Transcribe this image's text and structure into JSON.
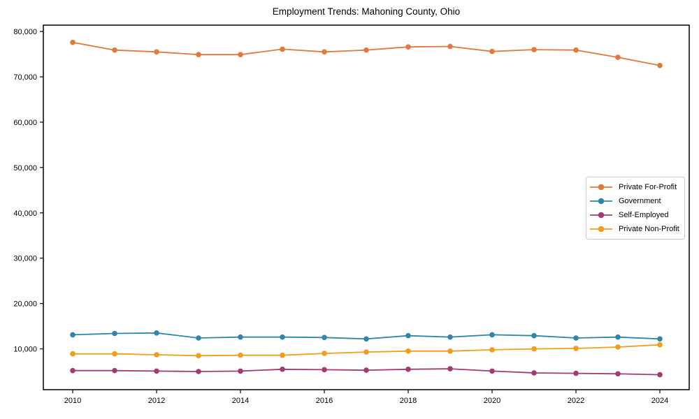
{
  "chart_data": {
    "type": "line",
    "title": "Employment Trends: Mahoning County, Ohio",
    "x": [
      2010,
      2011,
      2012,
      2013,
      2014,
      2015,
      2016,
      2017,
      2018,
      2019,
      2020,
      2021,
      2022,
      2023,
      2024
    ],
    "series": [
      {
        "name": "Private For-Profit",
        "color": "#E2793C",
        "values": [
          77600,
          75900,
          75500,
          74900,
          74900,
          76100,
          75500,
          75900,
          76600,
          76700,
          75600,
          76000,
          75900,
          74300,
          72500
        ]
      },
      {
        "name": "Government",
        "color": "#2E86A8",
        "values": [
          13100,
          13400,
          13500,
          12400,
          12600,
          12600,
          12500,
          12200,
          12900,
          12600,
          13100,
          12900,
          12400,
          12600,
          12200
        ]
      },
      {
        "name": "Self-Employed",
        "color": "#A23B72",
        "values": [
          5200,
          5200,
          5100,
          5000,
          5100,
          5500,
          5400,
          5300,
          5500,
          5600,
          5100,
          4700,
          4600,
          4500,
          4300
        ]
      },
      {
        "name": "Private Non-Profit",
        "color": "#F09C1E",
        "values": [
          8900,
          8900,
          8700,
          8500,
          8600,
          8600,
          9000,
          9300,
          9500,
          9500,
          9800,
          10000,
          10100,
          10400,
          10900
        ]
      }
    ],
    "xticks": [
      2010,
      2012,
      2014,
      2016,
      2018,
      2020,
      2022,
      2024
    ],
    "xtick_labels": [
      "2010",
      "2012",
      "2014",
      "2016",
      "2018",
      "2020",
      "2022",
      "2024"
    ],
    "yticks": [
      10000,
      20000,
      30000,
      40000,
      50000,
      60000,
      70000,
      80000
    ],
    "ytick_labels": [
      "10,000",
      "20,000",
      "30,000",
      "40,000",
      "50,000",
      "60,000",
      "70,000",
      "80,000"
    ],
    "xlim": [
      2009.3,
      2024.7
    ],
    "ylim": [
      1000,
      81400
    ],
    "grid": false,
    "legend_position": "center right",
    "marker": "circle",
    "axis_color": "#000000"
  }
}
